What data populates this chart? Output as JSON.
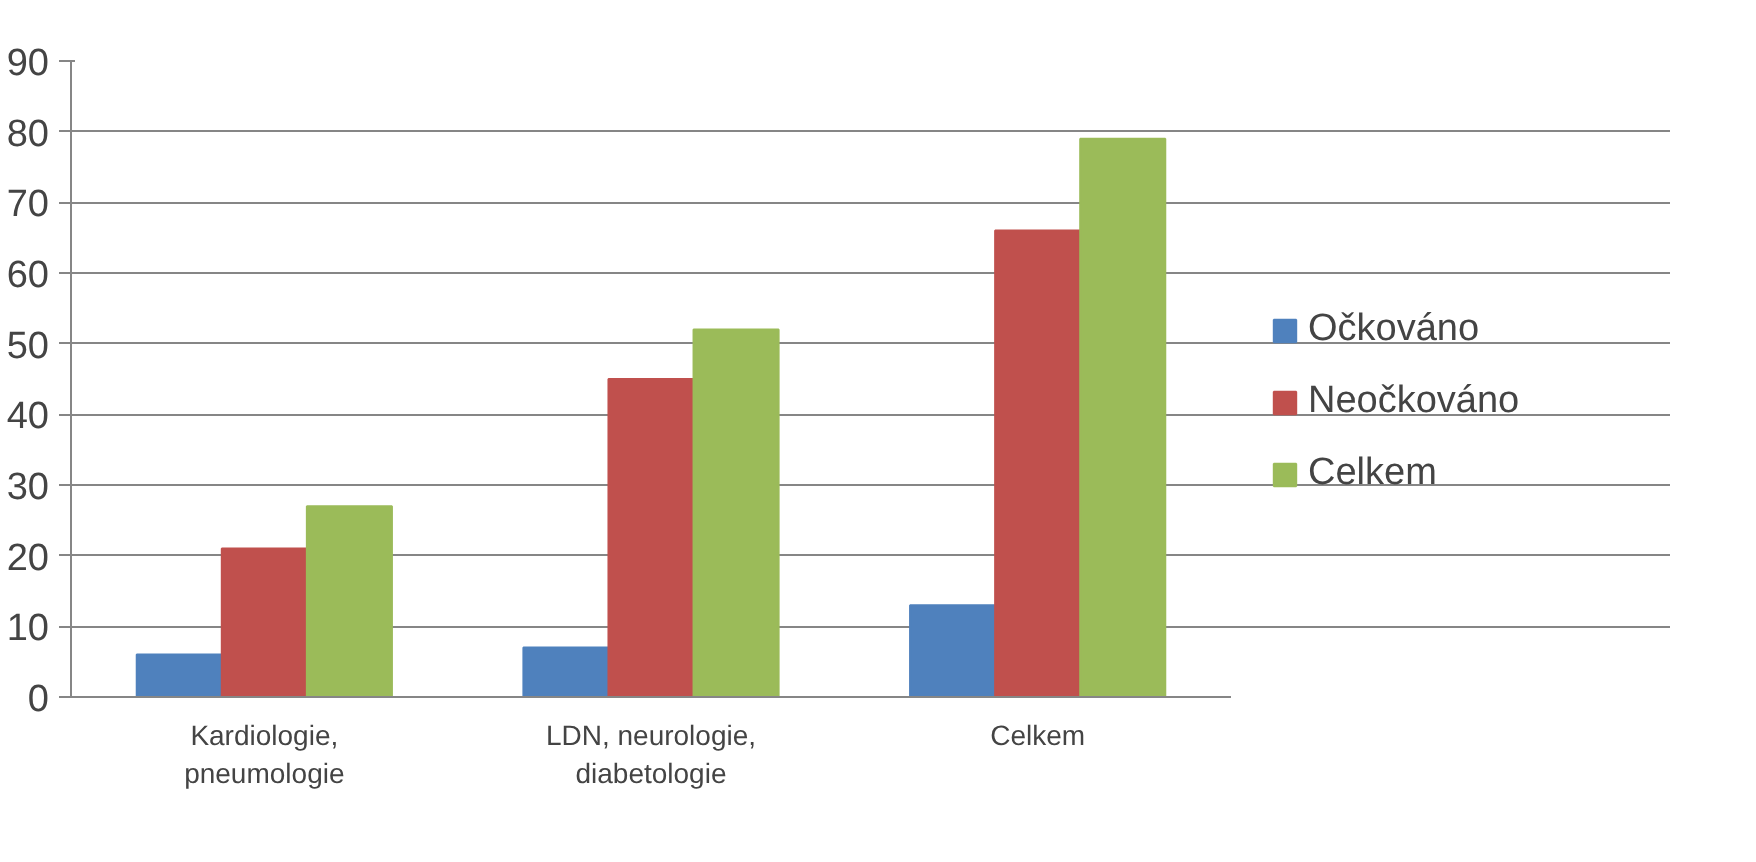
{
  "chart_data": {
    "type": "bar",
    "categories": [
      "Kardiologie, pneumologie",
      "LDN, neurologie, diabetologie",
      "Celkem"
    ],
    "series": [
      {
        "name": "Očkováno",
        "color": "#4f81bd",
        "values": [
          6,
          7,
          13
        ]
      },
      {
        "name": "Neočkováno",
        "color": "#c0504d",
        "values": [
          21,
          45,
          66
        ]
      },
      {
        "name": "Celkem",
        "color": "#9bbb59",
        "values": [
          27,
          52,
          79
        ]
      }
    ],
    "ylim": [
      0,
      90
    ],
    "yticks": [
      0,
      10,
      20,
      30,
      40,
      50,
      60,
      70,
      80,
      90
    ],
    "grid": "y",
    "legend": "right"
  }
}
